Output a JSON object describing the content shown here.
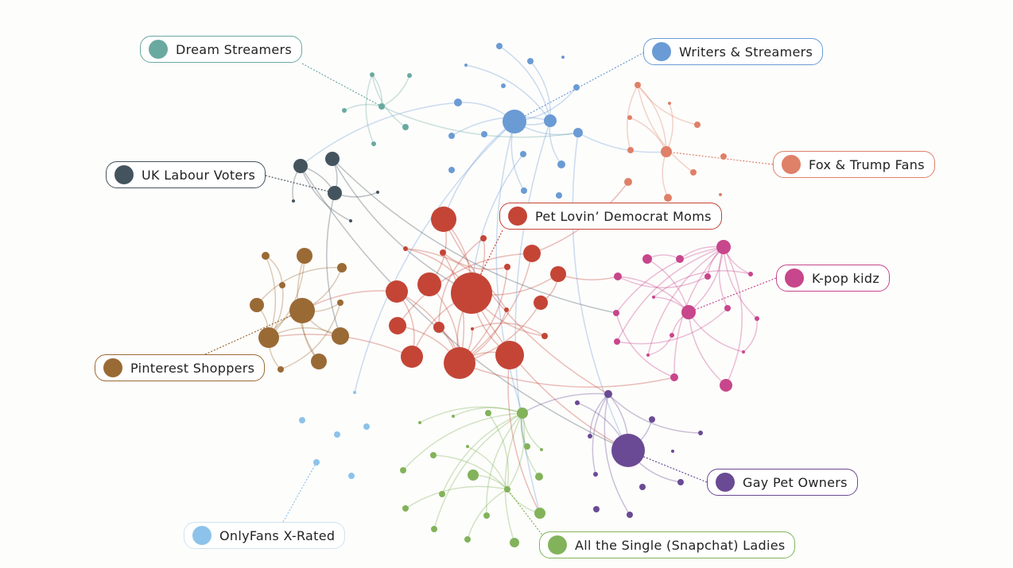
{
  "clusters": [
    {
      "id": "dream",
      "label": "Dream Streamers",
      "color": "#6aa9a0"
    },
    {
      "id": "writers",
      "label": "Writers & Streamers",
      "color": "#6a9bd4"
    },
    {
      "id": "fox",
      "label": "Fox & Trump Fans",
      "color": "#df8068"
    },
    {
      "id": "labour",
      "label": "UK Labour Voters",
      "color": "#44545e"
    },
    {
      "id": "democrat",
      "label": "Pet Lovin’ Democrat Moms",
      "color": "#c44536"
    },
    {
      "id": "kpop",
      "label": "K-pop kidz",
      "color": "#c8468b"
    },
    {
      "id": "pinterest",
      "label": "Pinterest Shoppers",
      "color": "#9a6a35"
    },
    {
      "id": "gay",
      "label": "Gay Pet Owners",
      "color": "#6a4a94"
    },
    {
      "id": "onlyfans",
      "label": "OnlyFans X-Rated",
      "color": "#8dc3ea"
    },
    {
      "id": "snapchat",
      "label": "All the Single (Snapchat) Ladies",
      "color": "#82b35a"
    }
  ]
}
